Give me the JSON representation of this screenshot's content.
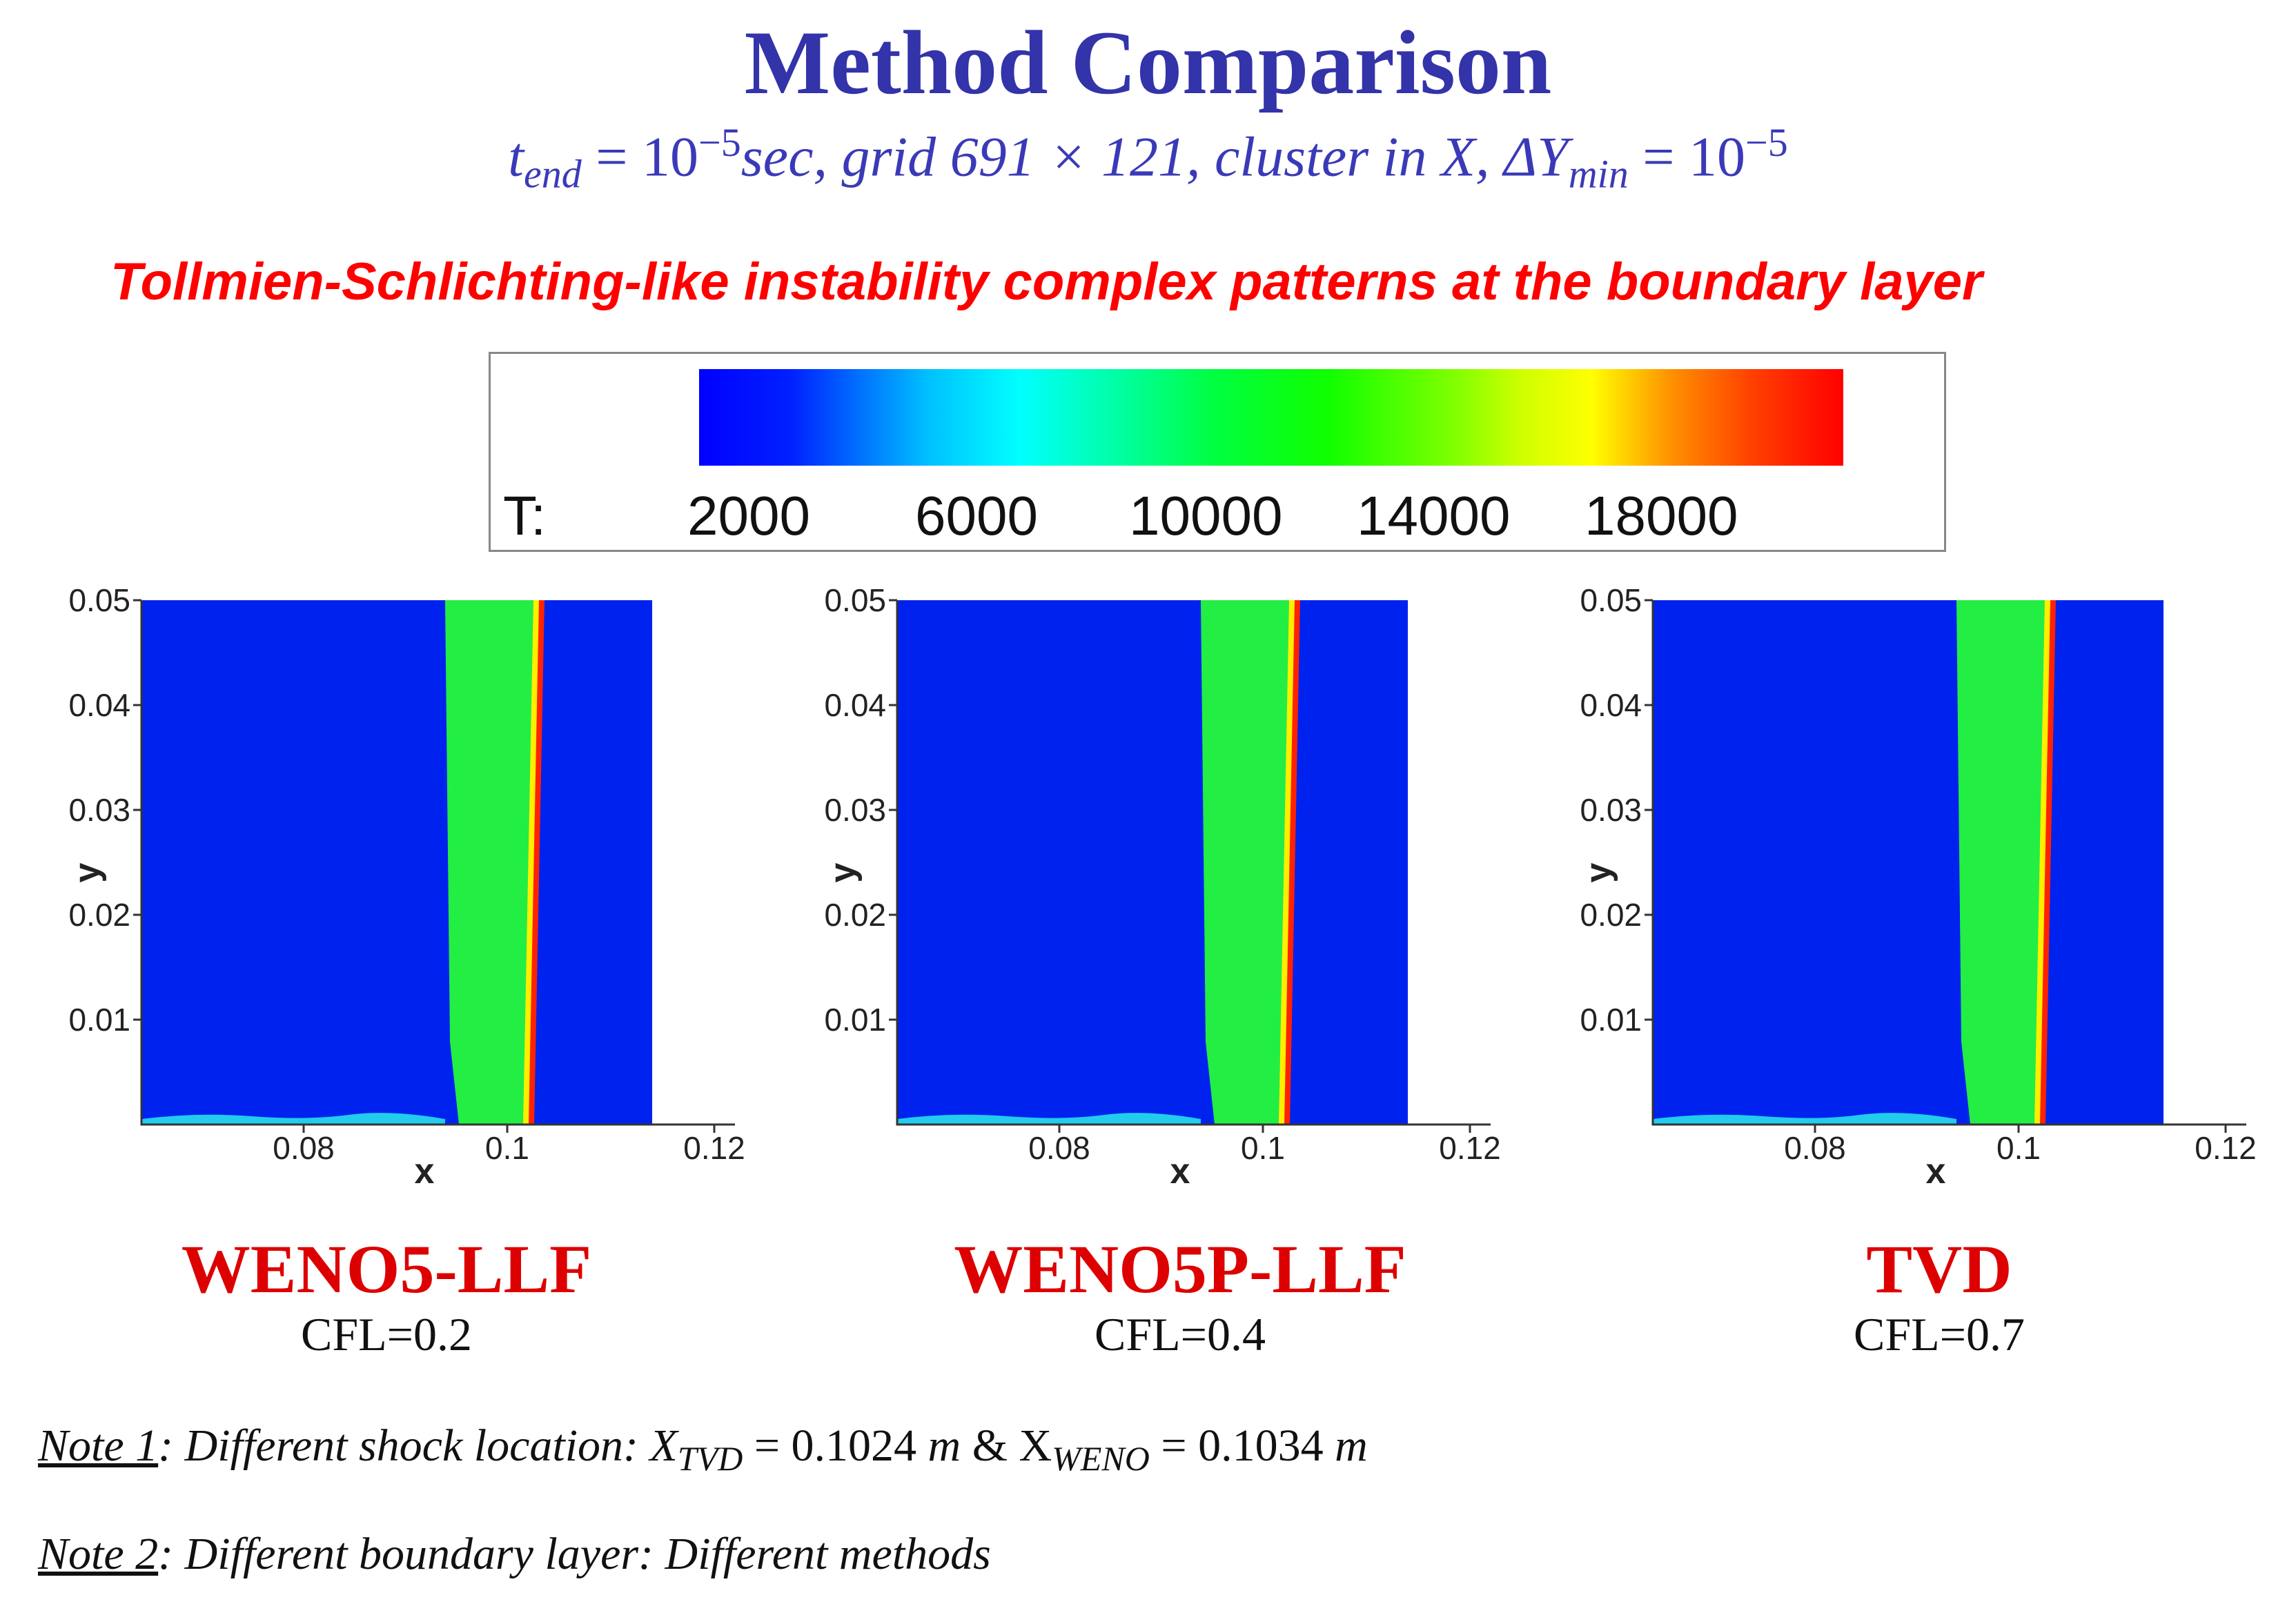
{
  "title": "Method Comparison",
  "subtitle": {
    "t": "t",
    "t_sub": "end",
    "eq1": " = 10",
    "exp1": "−5",
    "mid": "sec, grid 691 × 121, cluster in X, ΔY",
    "y_sub": "min",
    "eq2": " = 10",
    "exp2": "−5"
  },
  "headline": "Tollmien-Schlichting-like instability complex patterns at the boundary layer",
  "legend": {
    "variable": "T:",
    "ticks": [
      "2000",
      "6000",
      "10000",
      "14000",
      "18000"
    ]
  },
  "axis": {
    "y_label": "y",
    "x_label": "x",
    "y_ticks": [
      "0.05",
      "0.04",
      "0.03",
      "0.02",
      "0.01"
    ],
    "x_ticks": [
      "0.08",
      "0.1",
      "0.12"
    ]
  },
  "panels": [
    {
      "method": "WENO5-LLF",
      "cfl": "CFL=0.2"
    },
    {
      "method": "WENO5P-LLF",
      "cfl": "CFL=0.4"
    },
    {
      "method": "TVD",
      "cfl": "CFL=0.7"
    }
  ],
  "colors": {
    "cold": "#0022ee",
    "mid": "#22ee44",
    "shock": "#ff2200",
    "title": "#3333aa",
    "headline": "#ff0000"
  },
  "notes": [
    {
      "label": "Note 1",
      "text": ": Different shock location: X",
      "sub1": "TVD",
      "mid": " = 0.1024 ",
      "unit1": "m",
      "amp": " & X",
      "sub2": "WENO",
      "end": " = 0.1034 ",
      "unit2": "m"
    },
    {
      "label": "Note 2",
      "text": ": Different boundary layer: Different methods"
    }
  ]
}
